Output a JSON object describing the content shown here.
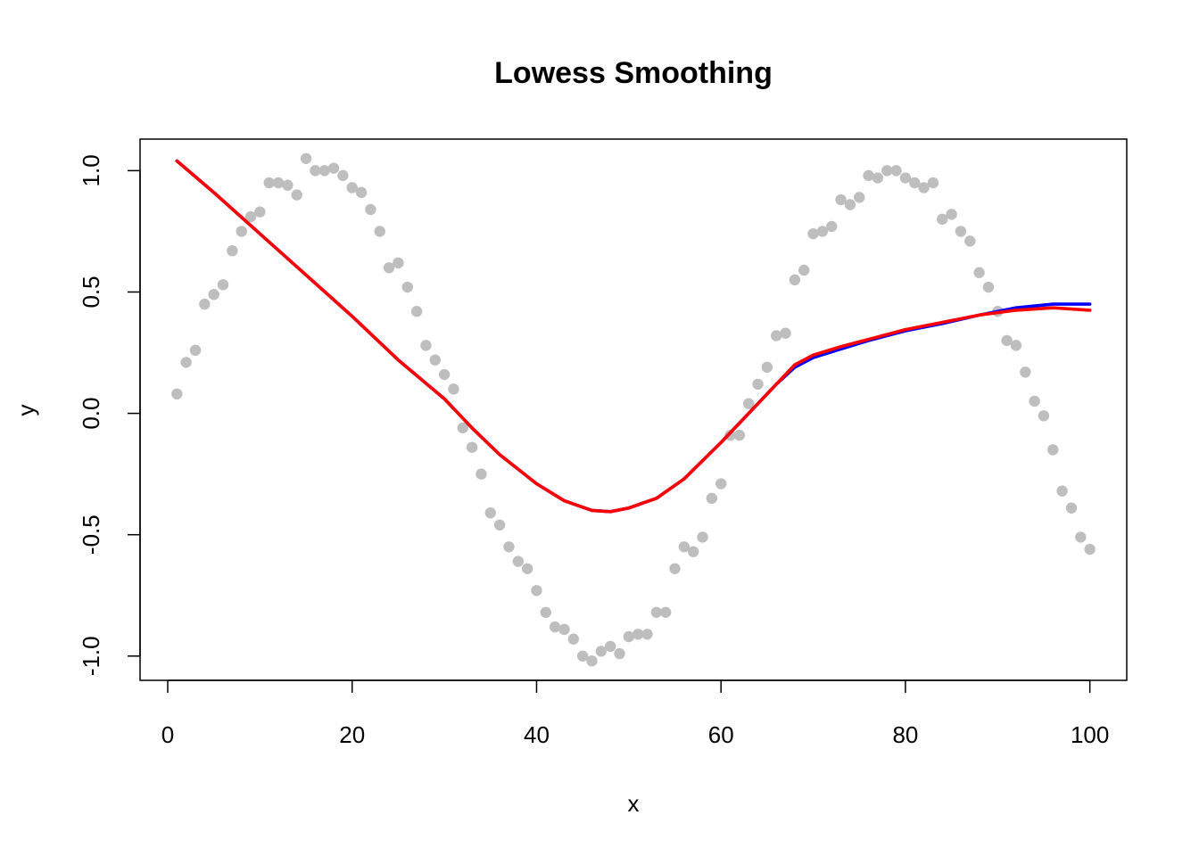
{
  "chart_data": {
    "type": "scatter",
    "title": "Lowess Smoothing",
    "xlabel": "x",
    "ylabel": "y",
    "xlim": [
      -3,
      104
    ],
    "ylim": [
      -1.1,
      1.13
    ],
    "x_ticks": [
      0,
      20,
      40,
      60,
      80,
      100
    ],
    "y_ticks": [
      -1.0,
      -0.5,
      0.0,
      0.5,
      1.0
    ],
    "x_tick_labels": [
      "0",
      "20",
      "40",
      "60",
      "80",
      "100"
    ],
    "y_tick_labels": [
      "-1.0",
      "-0.5",
      "0.0",
      "0.5",
      "1.0"
    ],
    "grid": false,
    "colors": {
      "points": "#BEBEBE",
      "blue_line": "#0000FF",
      "red_line": "#FF0000"
    },
    "points": {
      "x": [
        1,
        2,
        3,
        4,
        5,
        6,
        7,
        8,
        9,
        10,
        11,
        12,
        13,
        14,
        15,
        16,
        17,
        18,
        19,
        20,
        21,
        22,
        23,
        24,
        25,
        26,
        27,
        28,
        29,
        30,
        31,
        32,
        33,
        34,
        35,
        36,
        37,
        38,
        39,
        40,
        41,
        42,
        43,
        44,
        45,
        46,
        47,
        48,
        49,
        50,
        51,
        52,
        53,
        54,
        55,
        56,
        57,
        58,
        59,
        60,
        61,
        62,
        63,
        64,
        65,
        66,
        67,
        68,
        69,
        70,
        71,
        72,
        73,
        74,
        75,
        76,
        77,
        78,
        79,
        80,
        81,
        82,
        83,
        84,
        85,
        86,
        87,
        88,
        89,
        90,
        91,
        92,
        93,
        94,
        95,
        96,
        97,
        98,
        99,
        100
      ],
      "y": [
        0.08,
        0.21,
        0.26,
        0.45,
        0.49,
        0.53,
        0.67,
        0.75,
        0.81,
        0.83,
        0.95,
        0.95,
        0.94,
        0.9,
        1.05,
        1.0,
        1.0,
        1.01,
        0.98,
        0.93,
        0.91,
        0.84,
        0.75,
        0.6,
        0.62,
        0.52,
        0.42,
        0.28,
        0.22,
        0.16,
        0.1,
        -0.06,
        -0.14,
        -0.25,
        -0.41,
        -0.46,
        -0.55,
        -0.61,
        -0.64,
        -0.73,
        -0.82,
        -0.88,
        -0.89,
        -0.93,
        -1.0,
        -1.02,
        -0.98,
        -0.96,
        -0.99,
        -0.92,
        -0.91,
        -0.91,
        -0.82,
        -0.82,
        -0.64,
        -0.55,
        -0.57,
        -0.51,
        -0.35,
        -0.29,
        -0.09,
        -0.09,
        0.04,
        0.12,
        0.19,
        0.32,
        0.33,
        0.55,
        0.59,
        0.74,
        0.75,
        0.77,
        0.88,
        0.86,
        0.89,
        0.98,
        0.97,
        1.0,
        1.0,
        0.97,
        0.95,
        0.93,
        0.95,
        0.8,
        0.82,
        0.75,
        0.71,
        0.58,
        0.52,
        0.42,
        0.3,
        0.28,
        0.17,
        0.05,
        -0.01,
        -0.15,
        -0.32,
        -0.39,
        -0.51,
        -0.56
      ]
    },
    "series": [
      {
        "color": "#0000FF",
        "x": [
          1,
          5,
          10,
          15,
          20,
          25,
          30,
          33,
          36,
          40,
          43,
          46,
          48,
          50,
          53,
          56,
          60,
          64,
          66,
          68,
          70,
          73,
          76,
          80,
          84,
          88,
          92,
          96,
          100
        ],
        "y": [
          1.04,
          0.91,
          0.74,
          0.57,
          0.4,
          0.22,
          0.06,
          -0.06,
          -0.17,
          -0.29,
          -0.36,
          -0.4,
          -0.405,
          -0.39,
          -0.35,
          -0.27,
          -0.12,
          0.04,
          0.12,
          0.19,
          0.23,
          0.265,
          0.3,
          0.34,
          0.37,
          0.405,
          0.435,
          0.45,
          0.45
        ]
      },
      {
        "color": "#FF0000",
        "x": [
          1,
          5,
          10,
          15,
          20,
          25,
          30,
          33,
          36,
          40,
          43,
          46,
          48,
          50,
          53,
          56,
          60,
          64,
          66,
          68,
          70,
          73,
          76,
          80,
          84,
          88,
          92,
          96,
          100
        ],
        "y": [
          1.04,
          0.91,
          0.74,
          0.57,
          0.4,
          0.22,
          0.06,
          -0.06,
          -0.17,
          -0.29,
          -0.36,
          -0.4,
          -0.405,
          -0.39,
          -0.35,
          -0.27,
          -0.12,
          0.04,
          0.12,
          0.2,
          0.24,
          0.275,
          0.305,
          0.345,
          0.375,
          0.405,
          0.425,
          0.435,
          0.425
        ]
      }
    ]
  }
}
